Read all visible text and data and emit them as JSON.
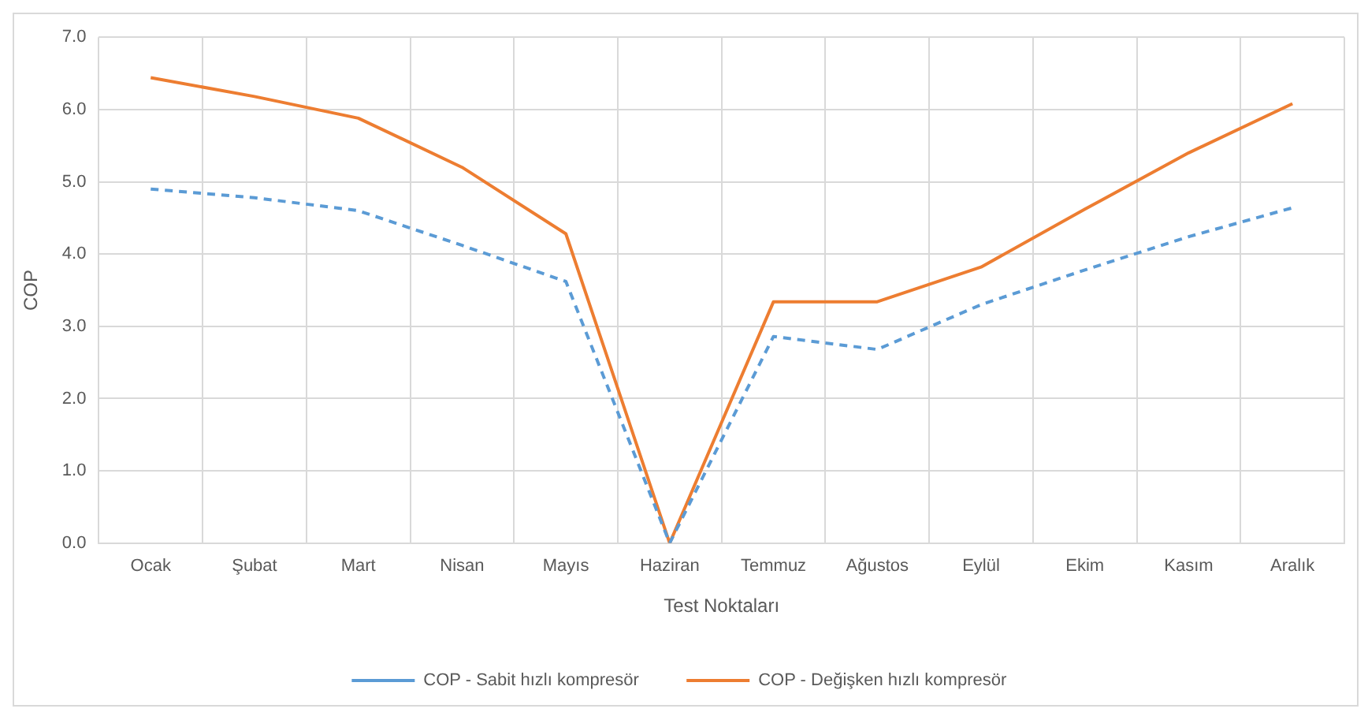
{
  "chart_data": {
    "type": "line",
    "xlabel": "Test Noktaları",
    "ylabel": "COP",
    "categories": [
      "Ocak",
      "Şubat",
      "Mart",
      "Nisan",
      "Mayıs",
      "Haziran",
      "Temmuz",
      "Ağustos",
      "Eylül",
      "Ekim",
      "Kasım",
      "Aralık"
    ],
    "series": [
      {
        "name": "COP - Sabit hızlı kompresör",
        "color": "#5b9bd5",
        "line_style": "dashed",
        "values": [
          4.9,
          4.78,
          4.6,
          4.12,
          3.62,
          0,
          2.86,
          2.68,
          3.3,
          3.78,
          4.24,
          4.64
        ]
      },
      {
        "name": "COP - Değişken hızlı kompresör",
        "color": "#ed7d31",
        "line_style": "solid",
        "values": [
          6.44,
          6.18,
          5.88,
          5.2,
          4.28,
          0,
          3.34,
          3.34,
          3.82,
          4.62,
          5.4,
          6.08
        ]
      }
    ],
    "ylim": [
      0,
      7
    ],
    "yticks": [
      {
        "value": 0,
        "label": "0.0"
      },
      {
        "value": 1,
        "label": "1.0"
      },
      {
        "value": 2,
        "label": "2.0"
      },
      {
        "value": 3,
        "label": "3.0"
      },
      {
        "value": 4,
        "label": "4.0"
      },
      {
        "value": 5,
        "label": "5.0"
      },
      {
        "value": 6,
        "label": "6.0"
      },
      {
        "value": 7,
        "label": "7.0"
      }
    ],
    "grid": true,
    "legend": "bottom",
    "marker": "none"
  }
}
